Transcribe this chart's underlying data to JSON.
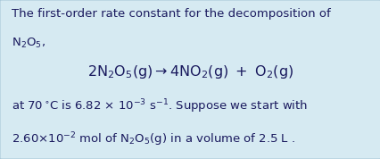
{
  "background_color": "#d6eaf2",
  "border_color": "#a8c8d8",
  "text_color": "#1a1a5e",
  "fontsize": 9.5,
  "eq_fontsize": 11.5,
  "fig_width": 4.27,
  "fig_height": 1.78,
  "dpi": 100
}
